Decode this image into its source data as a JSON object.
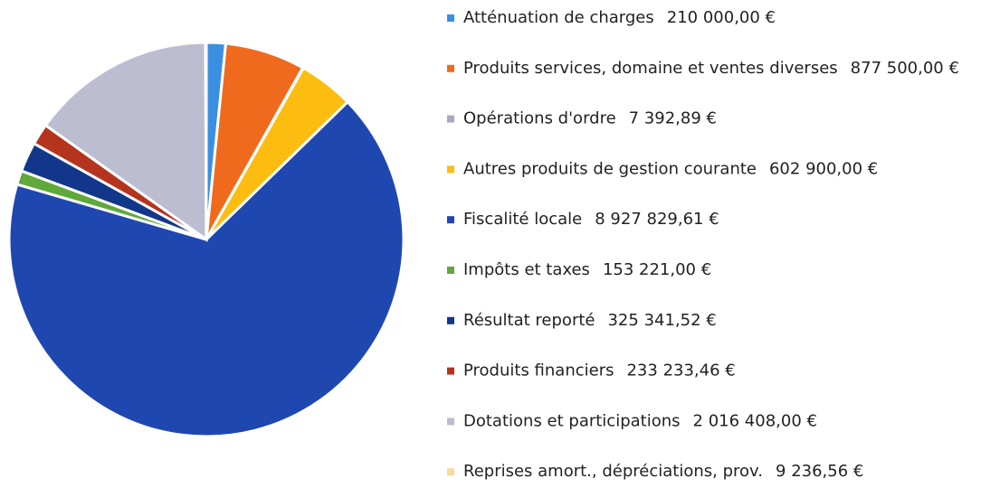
{
  "chart_data": {
    "type": "pie",
    "categories": [
      "Atténuation de charges",
      "Produits services, domaine et ventes diverses",
      "Opérations d'ordre",
      "Autres produits de gestion courante",
      "Fiscalité locale",
      "Impôts et taxes",
      "Résultat reporté",
      "Produits financiers",
      "Dotations et participations",
      "Reprises amort., dépréciations, prov."
    ],
    "values": [
      210000,
      877500,
      7392.89,
      602900,
      8927829.61,
      153221,
      325341.52,
      233233.46,
      2016408,
      9236.56
    ],
    "value_labels": [
      "210 000,00 €",
      "877 500,00 €",
      "7 392,89 €",
      "602 900,00 €",
      "8 927 829,61 €",
      "153 221,00 €",
      "325 341,52 €",
      "233 233,46 €",
      "2 016 408,00 €",
      "9 236,56 €"
    ],
    "colors": [
      "#3a8fe0",
      "#f06a1e",
      "#a9a9c0",
      "#fdbd10",
      "#1f47b0",
      "#5fa83a",
      "#12378a",
      "#b5341e",
      "#bdbdd2",
      "#f8d9a0"
    ]
  }
}
